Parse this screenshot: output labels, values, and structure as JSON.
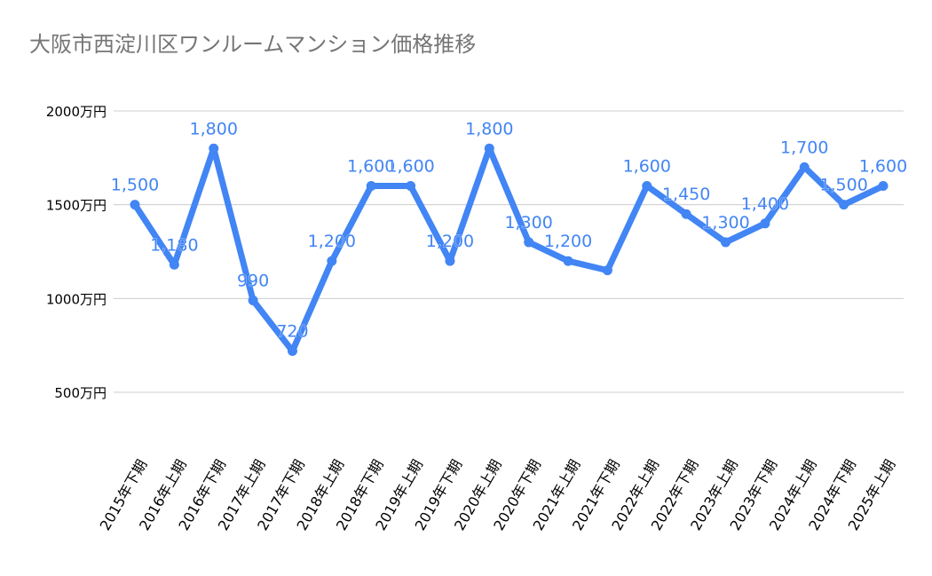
{
  "chart_data": {
    "type": "line",
    "title": "大阪市西淀川区ワンルームマンション価格推移",
    "xlabel": "",
    "ylabel": "",
    "categories": [
      "2015年下期",
      "2016年上期",
      "2016年下期",
      "2017年上期",
      "2017年下期",
      "2018年上期",
      "2018年下期",
      "2019年上期",
      "2019年下期",
      "2020年上期",
      "2020年下期",
      "2021年上期",
      "2021年下期",
      "2022年上期",
      "2022年下期",
      "2023年上期",
      "2023年下期",
      "2024年上期",
      "2024年下期",
      "2025年上期"
    ],
    "series": [
      {
        "values": [
          1500,
          1180,
          1800,
          990,
          720,
          1200,
          1600,
          1600,
          1200,
          1800,
          1300,
          1200,
          1150,
          1600,
          1450,
          1300,
          1400,
          1700,
          1500,
          1600
        ],
        "labels": [
          "1,500",
          "1,180",
          "1,800",
          "990",
          "720",
          "1,200",
          "1,600",
          "1,600",
          "1,200",
          "1,800",
          "1,300",
          "1,200",
          "",
          "1,600",
          "1,450",
          "1,300",
          "1,400",
          "1,700",
          "1,500",
          "1,600"
        ]
      }
    ],
    "yticks": [
      "500万円",
      "1000万円",
      "1500万円",
      "2000万円"
    ],
    "ytick_values": [
      500,
      1000,
      1500,
      2000
    ],
    "ylim": [
      500,
      2000
    ],
    "grid": true,
    "legend": "none",
    "colors": {
      "line": "#4285f4",
      "label": "#4285f4",
      "grid": "#cccccc"
    }
  }
}
